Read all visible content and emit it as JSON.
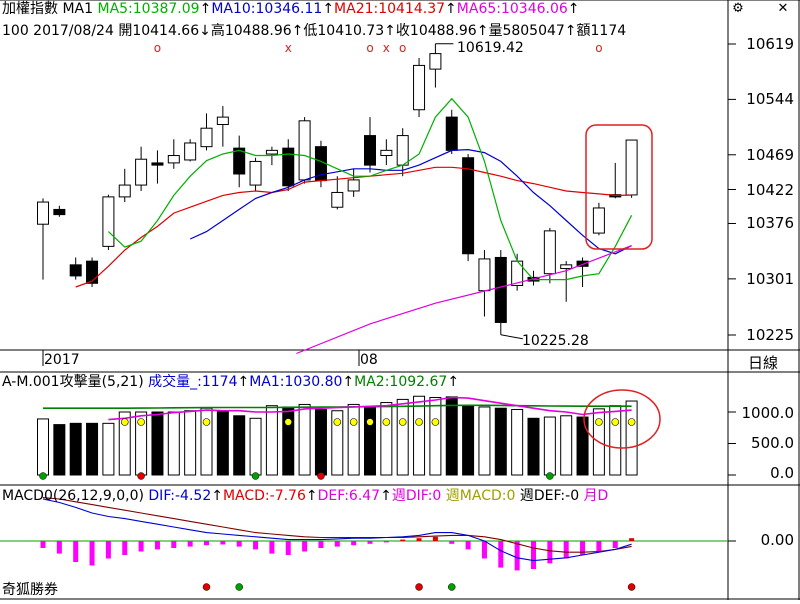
{
  "header": {
    "index_name": "加權指數",
    "period": "MA1",
    "ma5": "MA5:10387.09",
    "ma10": "MA10:10346.11",
    "ma21": "MA21:10414.37",
    "ma65": "MA65:10346.06",
    "arrow_up": "↑",
    "line2": "100 2017/08/24 開10414.66↓高10488.96↑低10410.73↑收10488.96↑量5805047↑額1174"
  },
  "price_axis": {
    "ticks": [
      "10619",
      "10544",
      "10469",
      "10422",
      "10376",
      "10301",
      "10225"
    ]
  },
  "annotations": {
    "high_label": "10619.42",
    "low_label": "10225.28"
  },
  "date_axis": {
    "year_label": "2017",
    "month_label": "08",
    "period_label": "日線"
  },
  "volume_panel": {
    "title_prefix": "A-M.001攻擊量(5,21)",
    "vol_label": "成交量_:1174",
    "ma1_label": "MA1:1030.80",
    "ma2_label": "MA2:1092.67",
    "ticks": [
      "1000.0",
      "500.0",
      "0.0"
    ]
  },
  "macd_panel": {
    "title": "MACD0(26,12,9,0,0)",
    "dif_label": "DIF:-4.52",
    "macd_label": "MACD:-7.76",
    "def_label": "DEF:6.47",
    "week_dif_label": "週DIF:0",
    "week_macd_label": "週MACD:0",
    "week_def_label": "週DEF:-0",
    "month_label": "月D",
    "tick": "0.00"
  },
  "footer": {
    "brand": "奇狐勝券"
  },
  "colors": {
    "ma5": "#00b000",
    "ma10": "#0000d0",
    "ma21": "#e00000",
    "ma65": "#e000e0",
    "highlight": "#e02020",
    "macd_bar": "#ff00ff"
  },
  "chart_data": {
    "type": "candlestick",
    "price_range": [
      10200,
      10640
    ],
    "candles": [
      {
        "open": 10375,
        "close": 10405,
        "high": 10410,
        "low": 10300
      },
      {
        "open": 10395,
        "close": 10388,
        "high": 10400,
        "low": 10385
      },
      {
        "open": 10320,
        "close": 10305,
        "high": 10330,
        "low": 10300
      },
      {
        "open": 10325,
        "close": 10295,
        "high": 10330,
        "low": 10290
      },
      {
        "open": 10345,
        "close": 10412,
        "high": 10415,
        "low": 10340
      },
      {
        "open": 10412,
        "close": 10428,
        "high": 10450,
        "low": 10405
      },
      {
        "open": 10428,
        "close": 10463,
        "high": 10480,
        "low": 10420
      },
      {
        "open": 10458,
        "close": 10455,
        "high": 10475,
        "low": 10430
      },
      {
        "open": 10458,
        "close": 10468,
        "high": 10490,
        "low": 10450
      },
      {
        "open": 10462,
        "close": 10485,
        "high": 10490,
        "low": 10460
      },
      {
        "open": 10480,
        "close": 10505,
        "high": 10525,
        "low": 10475
      },
      {
        "open": 10510,
        "close": 10520,
        "high": 10535,
        "low": 10480
      },
      {
        "open": 10478,
        "close": 10443,
        "high": 10495,
        "low": 10425
      },
      {
        "open": 10428,
        "close": 10460,
        "high": 10465,
        "low": 10420
      },
      {
        "open": 10470,
        "close": 10475,
        "high": 10480,
        "low": 10455
      },
      {
        "open": 10478,
        "close": 10427,
        "high": 10490,
        "low": 10420
      },
      {
        "open": 10435,
        "close": 10515,
        "high": 10520,
        "low": 10430
      },
      {
        "open": 10480,
        "close": 10434,
        "high": 10488,
        "low": 10425
      },
      {
        "open": 10398,
        "close": 10418,
        "high": 10440,
        "low": 10395
      },
      {
        "open": 10420,
        "close": 10435,
        "high": 10450,
        "low": 10412
      },
      {
        "open": 10495,
        "close": 10455,
        "high": 10520,
        "low": 10445
      },
      {
        "open": 10468,
        "close": 10475,
        "high": 10490,
        "low": 10455
      },
      {
        "open": 10455,
        "close": 10495,
        "high": 10505,
        "low": 10440
      },
      {
        "open": 10530,
        "close": 10590,
        "high": 10600,
        "low": 10520
      },
      {
        "open": 10585,
        "close": 10606,
        "high": 10619.42,
        "low": 10560
      },
      {
        "open": 10520,
        "close": 10475,
        "high": 10530,
        "low": 10470
      },
      {
        "open": 10465,
        "close": 10335,
        "high": 10470,
        "low": 10325
      },
      {
        "open": 10285,
        "close": 10328,
        "high": 10340,
        "low": 10250
      },
      {
        "open": 10330,
        "close": 10242,
        "high": 10340,
        "low": 10225.28
      },
      {
        "open": 10292,
        "close": 10325,
        "high": 10335,
        "low": 10285
      },
      {
        "open": 10303,
        "close": 10298,
        "high": 10312,
        "low": 10292
      },
      {
        "open": 10308,
        "close": 10366,
        "high": 10370,
        "low": 10295
      },
      {
        "open": 10315,
        "close": 10320,
        "high": 10325,
        "low": 10270
      },
      {
        "open": 10325,
        "close": 10318,
        "high": 10330,
        "low": 10290
      },
      {
        "open": 10363,
        "close": 10397,
        "high": 10404,
        "low": 10360
      },
      {
        "open": 10415,
        "close": 10412,
        "high": 10458,
        "low": 10410
      },
      {
        "open": 10414.66,
        "close": 10488.96,
        "high": 10488.96,
        "low": 10410.73
      }
    ],
    "ma5": [
      null,
      null,
      null,
      null,
      10365,
      10344,
      10352,
      10380,
      10414,
      10440,
      10461,
      10470,
      10475,
      10468,
      10468,
      10470,
      10468,
      10460,
      10450,
      10440,
      10440,
      10448,
      10455,
      10470,
      10520,
      10545,
      10520,
      10460,
      10380,
      10325,
      10300,
      10300,
      10300,
      10305,
      10308,
      10345,
      10387.09
    ],
    "ma10": [
      null,
      null,
      null,
      null,
      null,
      null,
      null,
      null,
      null,
      10355,
      10365,
      10380,
      10395,
      10410,
      10418,
      10425,
      10435,
      10442,
      10446,
      10450,
      10450,
      10448,
      10448,
      10455,
      10465,
      10475,
      10476,
      10472,
      10460,
      10440,
      10418,
      10400,
      10380,
      10360,
      10342,
      10335,
      10346.11
    ],
    "ma21": [
      null,
      null,
      10290,
      10298,
      10318,
      10340,
      10357,
      10372,
      10390,
      10398,
      10406,
      10414,
      10418,
      10420,
      10418,
      10422,
      10432,
      10434,
      10436,
      10438,
      10440,
      10442,
      10444,
      10448,
      10452,
      10452,
      10450,
      10445,
      10440,
      10434,
      10430,
      10425,
      10420,
      10418,
      10416,
      10414,
      10414.37
    ],
    "ma65_visible": [
      [
        16,
        10200
      ],
      [
        20,
        10240
      ],
      [
        24,
        10268
      ],
      [
        28,
        10288
      ],
      [
        32,
        10305
      ],
      [
        36,
        10346.06
      ]
    ],
    "ma65_mid": [
      null,
      null,
      null,
      null,
      null,
      null,
      null,
      null,
      null,
      null,
      null,
      null,
      null,
      null,
      null,
      null,
      null,
      null,
      null,
      null,
      null,
      null,
      null,
      null,
      null,
      null,
      null,
      null,
      null,
      10298,
      10302,
      10310,
      10318,
      10325,
      10332,
      10340,
      10346.06
    ],
    "volume": {
      "range": [
        0,
        1300
      ],
      "values": [
        890,
        800,
        820,
        820,
        820,
        1000,
        1000,
        1000,
        1000,
        1020,
        1060,
        1020,
        940,
        900,
        1100,
        1080,
        1120,
        1040,
        1020,
        1120,
        1080,
        1150,
        1200,
        1250,
        1230,
        1240,
        1100,
        1080,
        1060,
        1040,
        900,
        920,
        940,
        920,
        1050,
        1100,
        1174
      ],
      "bullish": [
        true,
        false,
        false,
        false,
        true,
        true,
        true,
        false,
        true,
        true,
        true,
        false,
        false,
        true,
        true,
        false,
        true,
        false,
        true,
        true,
        false,
        true,
        true,
        true,
        true,
        false,
        false,
        true,
        false,
        true,
        false,
        true,
        true,
        false,
        true,
        true,
        true
      ],
      "ma1": [
        null,
        null,
        null,
        null,
        880,
        900,
        940,
        960,
        990,
        1010,
        1030,
        1020,
        1020,
        1000,
        1000,
        1010,
        1050,
        1060,
        1070,
        1080,
        1090,
        1100,
        1130,
        1160,
        1190,
        1230,
        1220,
        1180,
        1140,
        1100,
        1060,
        1020,
        1000,
        960,
        990,
        1010,
        1030.8
      ],
      "ma2": [
        1060,
        1060,
        1060,
        1060,
        1060,
        1060,
        1062,
        1064,
        1066,
        1068,
        1070,
        1072,
        1072,
        1072,
        1072,
        1074,
        1076,
        1078,
        1080,
        1082,
        1084,
        1086,
        1090,
        1094,
        1100,
        1104,
        1106,
        1106,
        1104,
        1100,
        1098,
        1096,
        1094,
        1092,
        1092,
        1092,
        1092.67
      ]
    },
    "macd": {
      "range": [
        -60,
        60
      ],
      "bars": [
        -10,
        -18,
        -30,
        -35,
        -25,
        -20,
        -15,
        -12,
        -10,
        -8,
        -6,
        -5,
        -8,
        -12,
        -18,
        -20,
        -15,
        -10,
        -8,
        -6,
        -4,
        -2,
        2,
        4,
        6,
        -4,
        -12,
        -25,
        -38,
        -42,
        -40,
        -32,
        -25,
        -20,
        -15,
        -10,
        4
      ],
      "dif": [
        60,
        55,
        48,
        40,
        35,
        32,
        28,
        24,
        20,
        16,
        12,
        10,
        8,
        6,
        4,
        2,
        2,
        2,
        3,
        4,
        4,
        5,
        6,
        8,
        12,
        12,
        8,
        0,
        -14,
        -24,
        -28,
        -26,
        -24,
        -20,
        -16,
        -12,
        -4.52
      ],
      "dea": [
        62,
        60,
        56,
        52,
        48,
        44,
        40,
        36,
        32,
        28,
        24,
        20,
        16,
        12,
        10,
        8,
        6,
        5,
        5,
        5,
        5,
        5,
        5,
        6,
        7,
        8,
        8,
        6,
        2,
        -4,
        -10,
        -14,
        -16,
        -16,
        -15,
        -12,
        -7.76
      ]
    }
  }
}
